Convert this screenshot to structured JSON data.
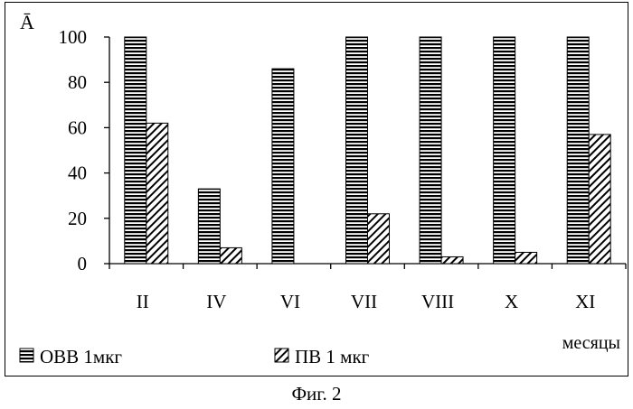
{
  "chart_data": {
    "type": "bar",
    "ylabel": "Ā",
    "xlabel": "месяцы",
    "categories": [
      "II",
      "IV",
      "VI",
      "VII",
      "VIII",
      "X",
      "XI"
    ],
    "yticks": [
      0,
      20,
      40,
      60,
      80,
      100
    ],
    "ylim": [
      0,
      100
    ],
    "grid": false,
    "legend_position": "bottom-left",
    "series": [
      {
        "name": "ОВВ 1мкг",
        "pattern": "horizontal-stripes",
        "values": [
          100,
          33,
          86,
          100,
          100,
          100,
          100
        ]
      },
      {
        "name": "ПВ 1 мкг",
        "pattern": "diagonal-hatch",
        "values": [
          62,
          7,
          0,
          22,
          3,
          5,
          57
        ]
      }
    ]
  },
  "caption": "Фиг. 2"
}
